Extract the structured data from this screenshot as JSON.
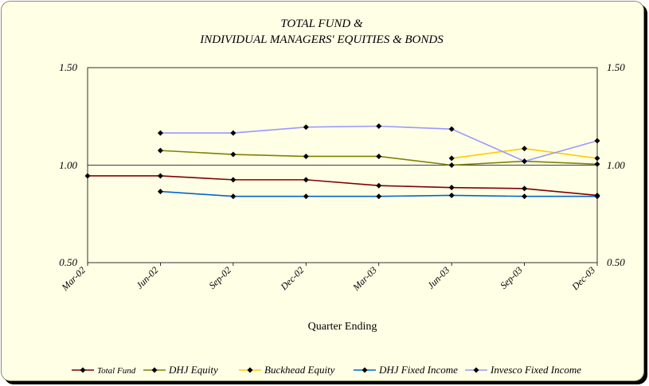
{
  "chart_data": {
    "type": "line",
    "title_lines": [
      "TOTAL FUND &",
      "INDIVIDUAL MANAGERS' EQUITIES & BONDS"
    ],
    "xlabel": "Quarter Ending",
    "categories": [
      "Mar-02",
      "Jun-02",
      "Sep-02",
      "Dec-02",
      "Mar-03",
      "Jun-03",
      "Sep-03",
      "Dec-03"
    ],
    "yticks_left": [
      "1.50",
      "1.00",
      "0.50"
    ],
    "yticks_right": [
      "1.50",
      "1.00",
      "0.50"
    ],
    "ylim": [
      0.5,
      1.5
    ],
    "reference_line": 1.0,
    "grid": false,
    "legend_position": "bottom",
    "series": [
      {
        "name": "Total Fund",
        "color": "#800000",
        "values": [
          0.945,
          0.945,
          0.925,
          0.925,
          0.895,
          0.885,
          0.88,
          0.845
        ]
      },
      {
        "name": "DHJ Equity",
        "color": "#808000",
        "values": [
          null,
          1.075,
          1.055,
          1.045,
          1.045,
          1.0,
          1.02,
          1.005
        ]
      },
      {
        "name": "Buckhead Equity",
        "color": "#ffcc00",
        "values": [
          null,
          null,
          null,
          null,
          null,
          1.035,
          1.085,
          1.035
        ]
      },
      {
        "name": "DHJ Fixed Income",
        "color": "#0066cc",
        "values": [
          null,
          0.865,
          0.84,
          0.84,
          0.84,
          0.845,
          0.84,
          0.84
        ]
      },
      {
        "name": "Invesco Fixed Income",
        "color": "#9999ff",
        "values": [
          null,
          1.165,
          1.165,
          1.195,
          1.2,
          1.185,
          1.02,
          1.125
        ]
      }
    ]
  }
}
